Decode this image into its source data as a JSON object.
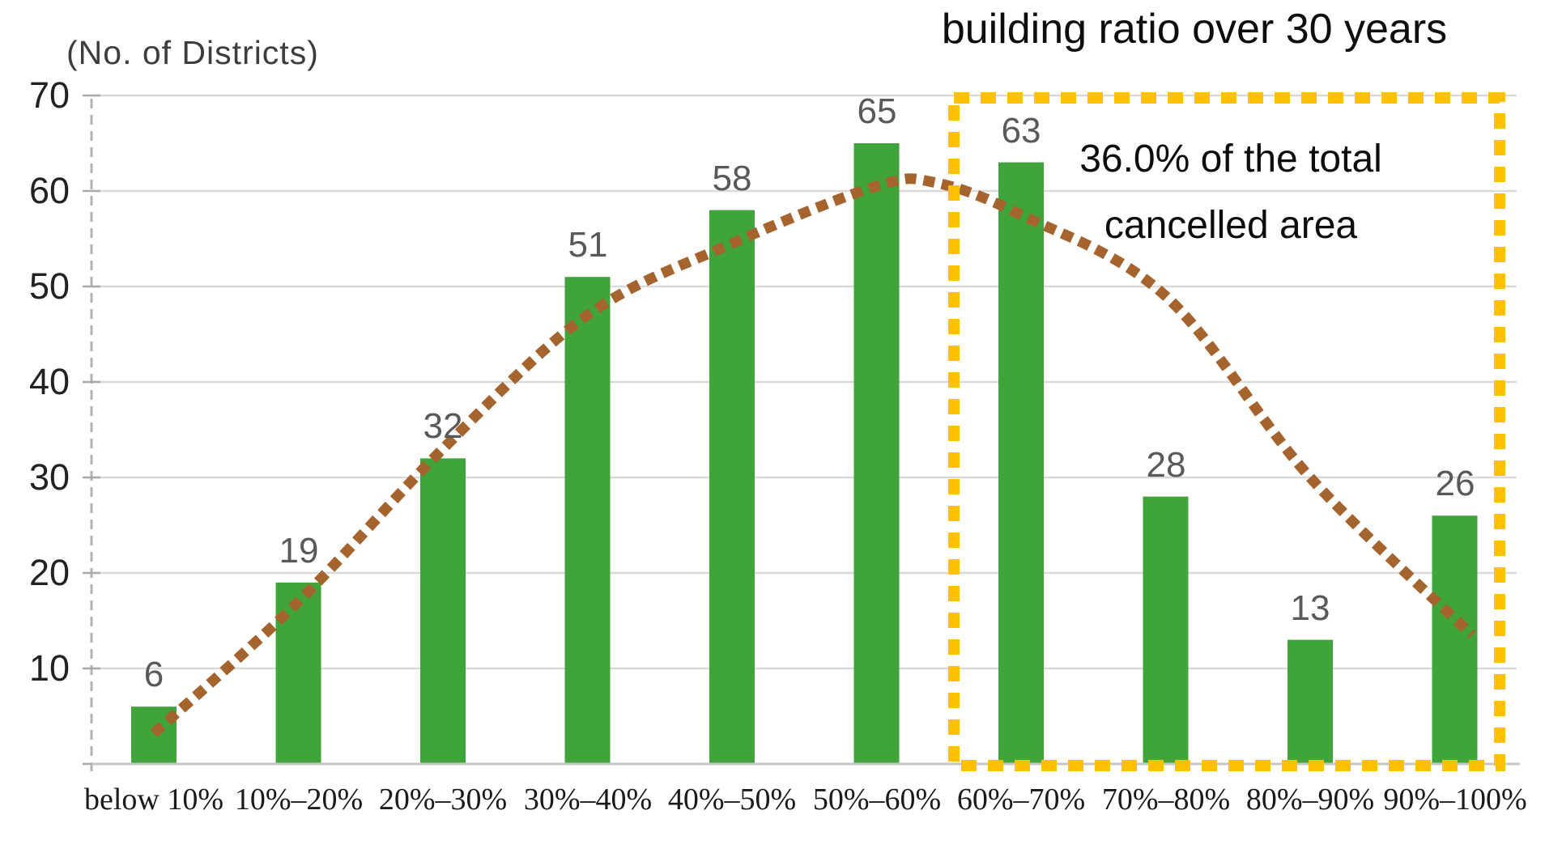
{
  "chart_data": {
    "type": "bar",
    "title": "building ratio over 30 years",
    "y_axis_title": "(No. of Districts)",
    "categories": [
      "below 10%",
      "10%–20%",
      "20%–30%",
      "30%–40%",
      "40%–50%",
      "50%–60%",
      "60%–70%",
      "70%–80%",
      "80%–90%",
      "90%–100%"
    ],
    "values": [
      6,
      19,
      32,
      51,
      58,
      65,
      63,
      28,
      13,
      26
    ],
    "y_ticks": [
      70,
      60,
      50,
      40,
      30,
      20,
      10
    ],
    "ylim": [
      0,
      70
    ],
    "grid": true,
    "legend_position": "none",
    "bar_color": "#3FA43A",
    "value_label_color": "#595959",
    "gridline_color": "#D9D9D9",
    "trend_line": {
      "style": "dotted",
      "color": "#A5632E",
      "points": [
        [
          0.0,
          3.2
        ],
        [
          1,
          17
        ],
        [
          2,
          33
        ],
        [
          3,
          47
        ],
        [
          4,
          54.5
        ],
        [
          5,
          60.5
        ],
        [
          5.4,
          60.9
        ],
        [
          6,
          57.5
        ],
        [
          7,
          49
        ],
        [
          8,
          30
        ],
        [
          9.12,
          13.5
        ]
      ]
    },
    "highlight_box": {
      "color": "#FFC000",
      "style": "dashed",
      "categories_covered": [
        "60%–70%",
        "70%–80%",
        "80%–90%",
        "90%–100%"
      ]
    },
    "annotation": {
      "line1": "36.0% of the total",
      "line2": "cancelled area"
    }
  }
}
